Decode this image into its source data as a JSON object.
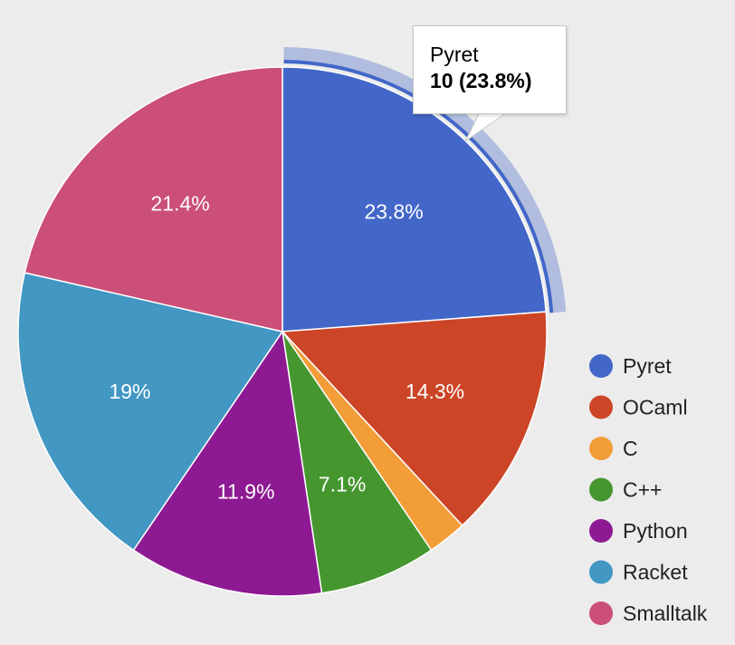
{
  "chart_data": {
    "type": "pie",
    "total": 42,
    "slices": [
      {
        "name": "Pyret",
        "value": 10,
        "label": "23.8%",
        "color": "#4267c8"
      },
      {
        "name": "OCaml",
        "value": 6,
        "label": "14.3%",
        "color": "#cc4527"
      },
      {
        "name": "C",
        "value": 1,
        "label": "",
        "color": "#f29d38"
      },
      {
        "name": "C++",
        "value": 3,
        "label": "7.1%",
        "color": "#45962f"
      },
      {
        "name": "Python",
        "value": 5,
        "label": "11.9%",
        "color": "#8e1a93"
      },
      {
        "name": "Racket",
        "value": 8,
        "label": "19%",
        "color": "#4297c3"
      },
      {
        "name": "Smalltalk",
        "value": 9,
        "label": "21.4%",
        "color": "#cb4f78"
      }
    ],
    "legend": {
      "position": "right"
    },
    "highlighted": "Pyret"
  },
  "tooltip": {
    "name": "Pyret",
    "value": "10 (23.8%)"
  }
}
